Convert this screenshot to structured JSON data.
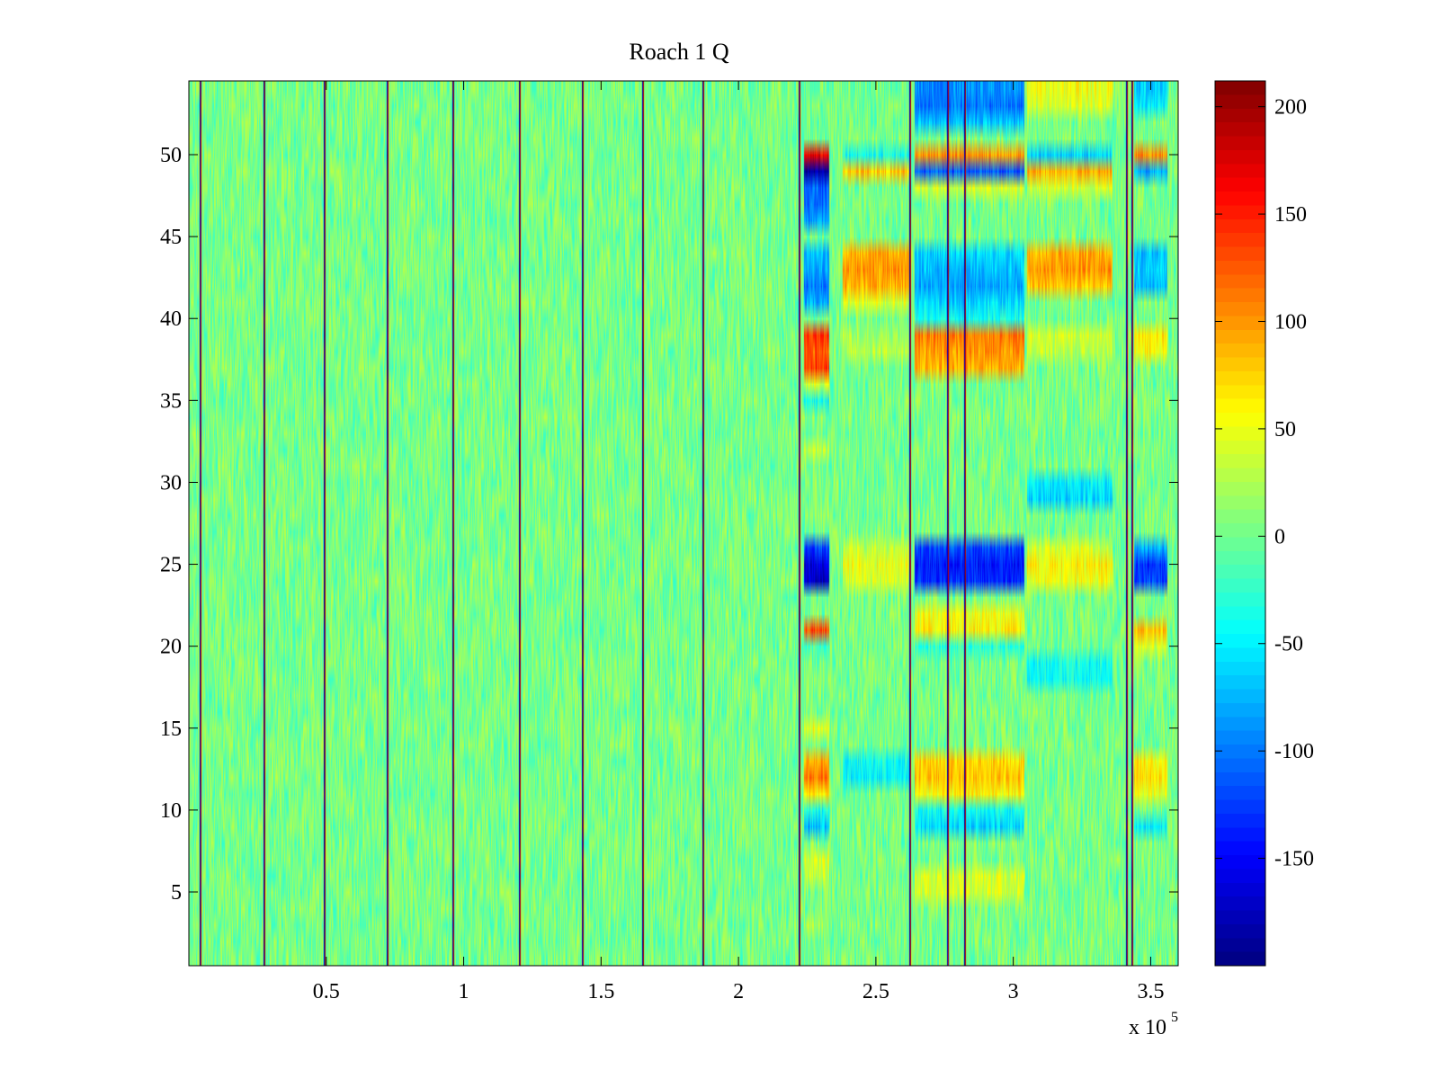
{
  "chart_data": {
    "type": "heatmap",
    "title": "Roach 1 Q",
    "xlabel": "",
    "ylabel": "",
    "x_exponent_label": "x 10",
    "x_exponent_power": "5",
    "xlim": [
      0,
      3.6
    ],
    "ylim": [
      0.5,
      54.5
    ],
    "x_ticks": [
      0.5,
      1,
      1.5,
      2,
      2.5,
      3,
      3.5
    ],
    "x_tick_labels": [
      "0.5",
      "1",
      "1.5",
      "2",
      "2.5",
      "3",
      "3.5"
    ],
    "y_ticks": [
      5,
      10,
      15,
      20,
      25,
      30,
      35,
      40,
      45,
      50
    ],
    "y_tick_labels": [
      "5",
      "10",
      "15",
      "20",
      "25",
      "30",
      "35",
      "40",
      "45",
      "50"
    ],
    "rows": 54,
    "color_range": [
      -200,
      212
    ],
    "colormap": "jet",
    "colorbar": {
      "ticks": [
        200,
        150,
        100,
        50,
        0,
        -50,
        -100,
        -150
      ],
      "tick_labels": [
        "200",
        "150",
        "100",
        "50",
        "0",
        "-50",
        "-100",
        "-150"
      ]
    },
    "background_mean": 0,
    "background_amplitude": 30,
    "spike_columns": [
      0.04,
      0.27,
      0.49,
      0.72,
      0.96,
      1.2,
      1.43,
      1.65,
      1.87,
      2.22,
      2.62,
      2.76,
      2.82,
      3.41,
      3.43
    ],
    "activity_segments": [
      {
        "x_start": 2.24,
        "x_end": 2.33,
        "rows": {
          "50": 170,
          "49": -190,
          "48": -110,
          "47": -100,
          "46": -90,
          "44": -70,
          "43": -80,
          "42": -100,
          "41": -80,
          "39": 140,
          "38": 120,
          "37": 140,
          "36": 40,
          "35": -40,
          "32": 30,
          "25": -160,
          "24": -170,
          "26": -120,
          "21": 130,
          "20": -20,
          "15": 50,
          "13": 90,
          "12": 110,
          "11": 70,
          "10": -40,
          "9": -70,
          "7": 40,
          "6": 30,
          "3": 20
        }
      },
      {
        "x_start": 2.38,
        "x_end": 2.62,
        "rows": {
          "50": -40,
          "49": 80,
          "44": 90,
          "43": 100,
          "42": 90,
          "41": 40,
          "39": 20,
          "38": 30,
          "25": 50,
          "24": 40,
          "26": 30,
          "13": -40,
          "12": -50
        }
      },
      {
        "x_start": 2.64,
        "x_end": 3.04,
        "rows": {
          "54": -90,
          "53": -100,
          "52": -70,
          "50": 100,
          "49": -110,
          "48": 40,
          "44": -60,
          "43": -70,
          "42": -80,
          "41": -60,
          "40": -40,
          "39": 110,
          "38": 100,
          "37": 90,
          "25": -140,
          "24": -130,
          "26": -120,
          "22": 50,
          "21": 60,
          "20": -30,
          "13": 70,
          "12": 80,
          "11": 60,
          "10": -40,
          "9": -60,
          "6": 40,
          "5": 40
        }
      },
      {
        "x_start": 3.05,
        "x_end": 3.36,
        "rows": {
          "54": 50,
          "53": 40,
          "50": -60,
          "49": 90,
          "48": 40,
          "44": 90,
          "43": 100,
          "42": 80,
          "39": 40,
          "38": 30,
          "30": -50,
          "29": -60,
          "25": 60,
          "24": 50,
          "26": 40,
          "19": -40,
          "18": -40
        }
      },
      {
        "x_start": 3.44,
        "x_end": 3.56,
        "rows": {
          "54": -60,
          "53": -50,
          "50": 100,
          "49": -80,
          "44": -70,
          "43": -60,
          "42": -70,
          "39": 70,
          "38": 60,
          "25": -130,
          "24": -120,
          "26": -80,
          "21": 80,
          "20": 40,
          "13": 60,
          "12": 70,
          "11": 50,
          "9": -50
        }
      }
    ]
  }
}
